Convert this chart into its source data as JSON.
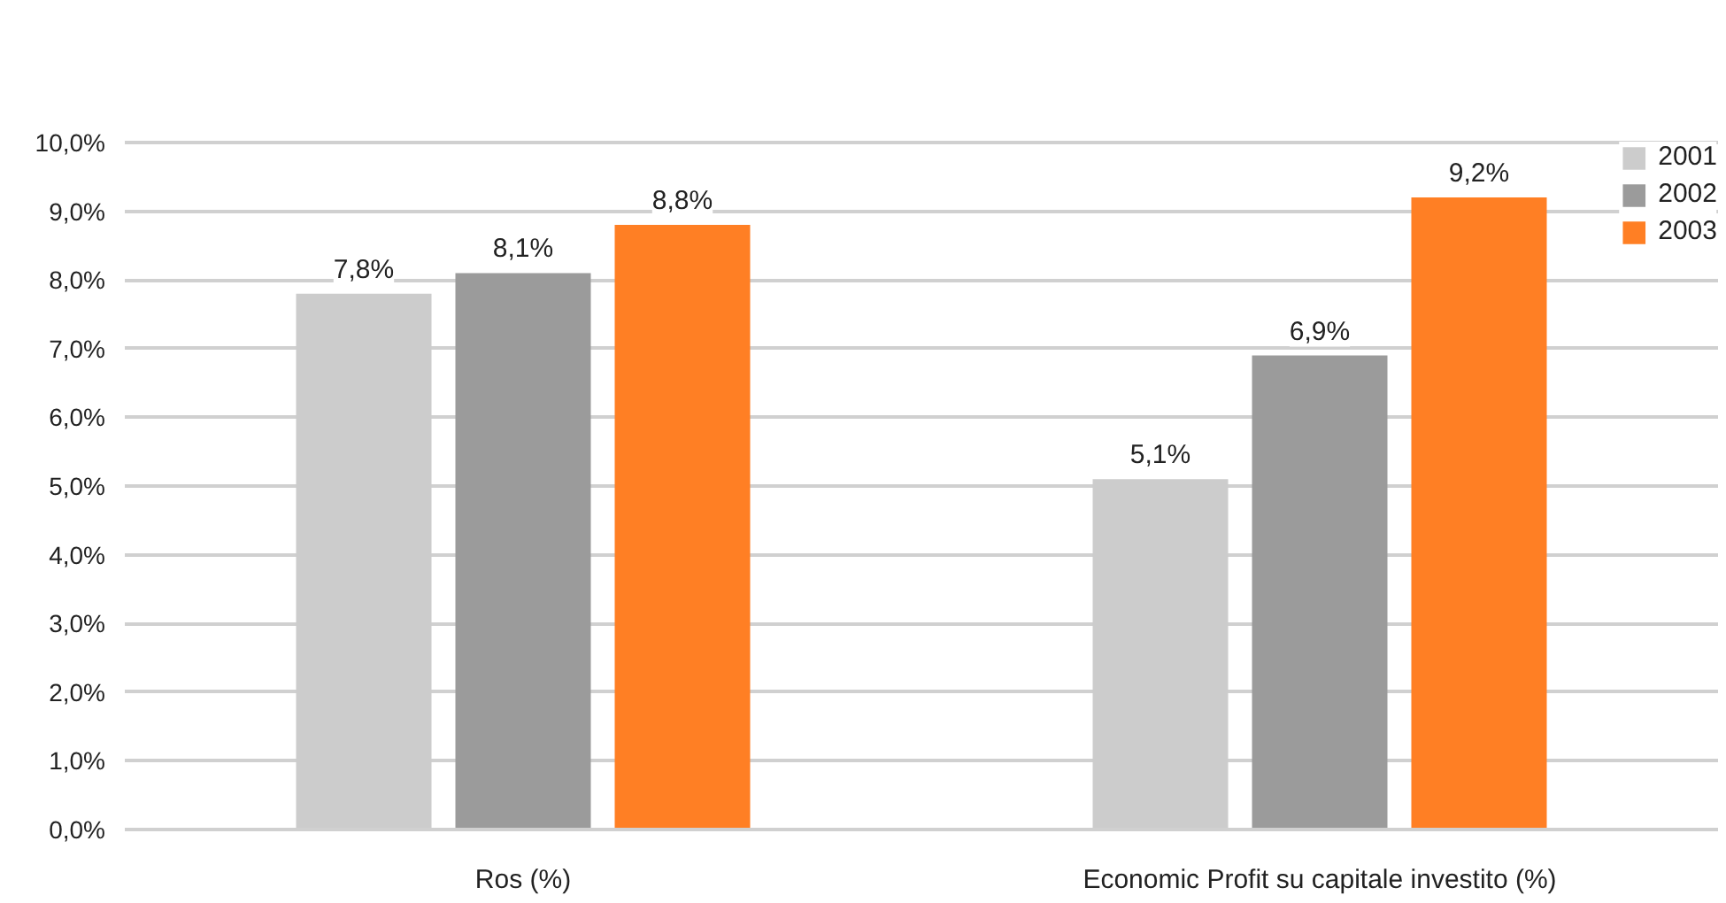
{
  "chart_data": {
    "type": "bar",
    "categories": [
      "Ros (%)",
      "Economic Profit su capitale investito (%)"
    ],
    "series": [
      {
        "name": "2001",
        "color": "#cccccc",
        "values": [
          7.8,
          5.1
        ],
        "value_labels": [
          "7,8%",
          "5,1%"
        ]
      },
      {
        "name": "2002",
        "color": "#9b9b9b",
        "values": [
          8.1,
          6.9
        ],
        "value_labels": [
          "8,1%",
          "6,9%"
        ]
      },
      {
        "name": "2003",
        "color": "#ff7f24",
        "values": [
          8.8,
          9.2
        ],
        "value_labels": [
          "8,8%",
          "9,2%"
        ]
      }
    ],
    "ylim": [
      0,
      10
    ],
    "yticks": [
      {
        "value": 0,
        "label": "0,0%"
      },
      {
        "value": 1,
        "label": "1,0%"
      },
      {
        "value": 2,
        "label": "2,0%"
      },
      {
        "value": 3,
        "label": "3,0%"
      },
      {
        "value": 4,
        "label": "4,0%"
      },
      {
        "value": 5,
        "label": "5,0%"
      },
      {
        "value": 6,
        "label": "6,0%"
      },
      {
        "value": 7,
        "label": "7,0%"
      },
      {
        "value": 8,
        "label": "8,0%"
      },
      {
        "value": 9,
        "label": "9,0%"
      },
      {
        "value": 10,
        "label": "10,0%"
      }
    ],
    "grid": "y",
    "legend": "top right"
  }
}
